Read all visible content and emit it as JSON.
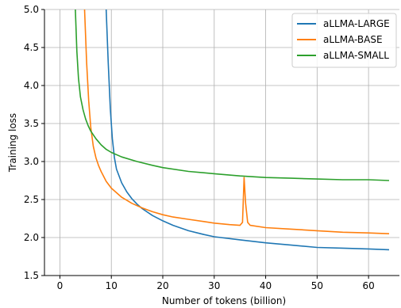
{
  "chart_data": {
    "type": "line",
    "title": "",
    "xlabel": "Number of tokens (billion)",
    "ylabel": "Training loss",
    "xlim": [
      -3,
      66
    ],
    "ylim": [
      1.5,
      5.0
    ],
    "xticks": [
      0,
      10,
      20,
      30,
      40,
      50,
      60
    ],
    "yticks": [
      1.5,
      2.0,
      2.5,
      3.0,
      3.5,
      4.0,
      4.5,
      5.0
    ],
    "grid": true,
    "legend_position": "top-right",
    "series": [
      {
        "name": "aLLMA-LARGE",
        "color": "#1f77b4",
        "x": [
          9.0,
          9.4,
          9.8,
          10.2,
          10.6,
          11,
          12,
          13,
          14,
          15,
          16,
          18,
          20,
          22,
          25,
          28,
          30,
          35,
          40,
          45,
          50,
          55,
          60,
          64
        ],
        "y": [
          5.0,
          4.3,
          3.7,
          3.3,
          3.05,
          2.9,
          2.72,
          2.6,
          2.51,
          2.44,
          2.38,
          2.29,
          2.22,
          2.16,
          2.09,
          2.04,
          2.01,
          1.97,
          1.93,
          1.9,
          1.87,
          1.86,
          1.85,
          1.84
        ]
      },
      {
        "name": "aLLMA-BASE",
        "color": "#ff7f0e",
        "x": [
          4.8,
          5.2,
          5.6,
          6,
          6.5,
          7,
          7.5,
          8,
          9,
          10,
          12,
          14,
          16,
          18,
          20,
          22,
          25,
          28,
          30,
          33,
          35,
          35.5,
          35.8,
          36.1,
          36.5,
          37,
          40,
          45,
          50,
          55,
          60,
          64
        ],
        "y": [
          5.0,
          4.3,
          3.8,
          3.45,
          3.2,
          3.05,
          2.95,
          2.87,
          2.74,
          2.65,
          2.53,
          2.45,
          2.39,
          2.34,
          2.3,
          2.27,
          2.24,
          2.21,
          2.19,
          2.17,
          2.16,
          2.2,
          2.79,
          2.45,
          2.2,
          2.16,
          2.13,
          2.11,
          2.09,
          2.07,
          2.06,
          2.05
        ]
      },
      {
        "name": "aLLMA-SMALL",
        "color": "#2ca02c",
        "x": [
          3.0,
          3.3,
          3.6,
          4,
          4.5,
          5,
          5.5,
          6,
          7,
          8,
          9,
          10,
          12,
          15,
          18,
          20,
          25,
          30,
          35,
          40,
          45,
          50,
          55,
          60,
          64
        ],
        "y": [
          5.0,
          4.45,
          4.1,
          3.85,
          3.68,
          3.56,
          3.47,
          3.4,
          3.3,
          3.22,
          3.16,
          3.12,
          3.06,
          3.0,
          2.95,
          2.92,
          2.87,
          2.84,
          2.81,
          2.79,
          2.78,
          2.77,
          2.76,
          2.76,
          2.75
        ]
      }
    ]
  }
}
